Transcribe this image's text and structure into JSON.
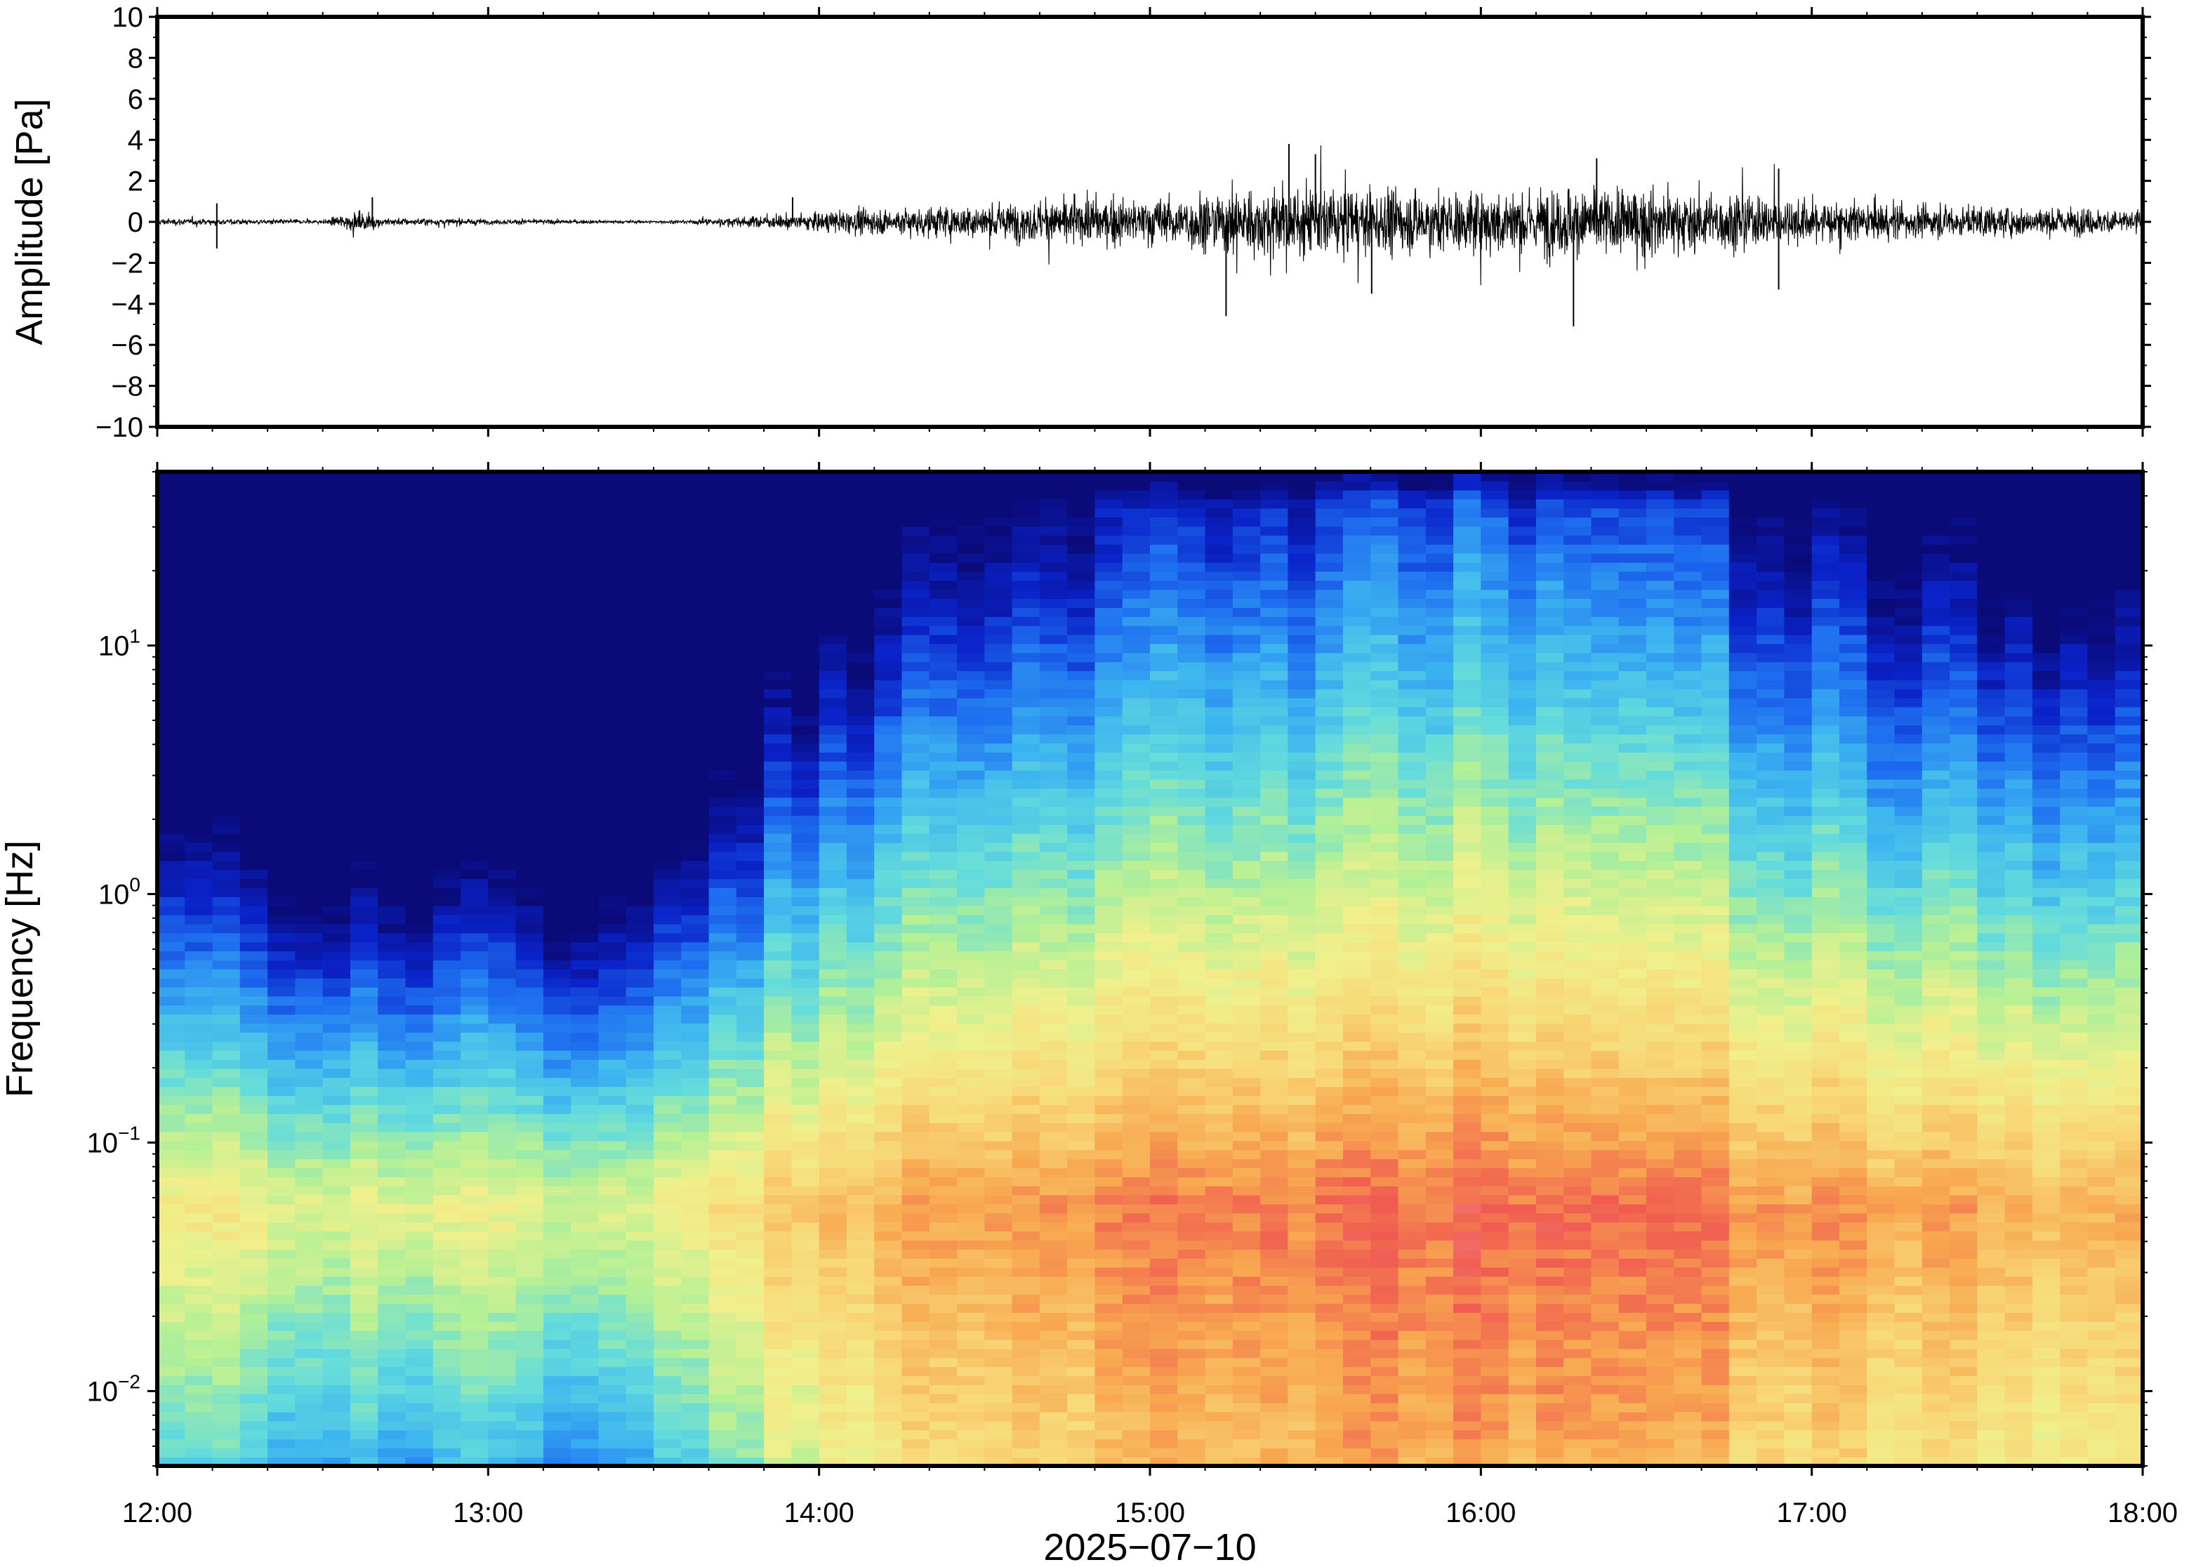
{
  "chart_data": [
    {
      "type": "line",
      "panel": "waveform",
      "ylabel": "Amplitude [Pa]",
      "ylim": [
        -10,
        10
      ],
      "yticks": [
        10,
        8,
        6,
        4,
        2,
        0,
        -2,
        -4,
        -6,
        -8,
        -10
      ],
      "ytick_labels": [
        "10",
        "8",
        "6",
        "4",
        "2",
        "0",
        "−2",
        "−4",
        "−6",
        "−8",
        "−10"
      ],
      "xlim": [
        "12:00",
        "18:00"
      ],
      "series_color": "#000000",
      "envelope": {
        "x_hours": [
          12.0,
          12.5,
          12.6,
          12.7,
          13.0,
          13.5,
          13.6,
          13.8,
          14.0,
          14.3,
          14.5,
          14.8,
          15.0,
          15.25,
          15.4,
          15.6,
          15.8,
          16.0,
          16.3,
          16.5,
          16.7,
          16.9,
          17.2,
          17.5,
          18.0
        ],
        "amplitude_pa": [
          0.25,
          0.15,
          0.7,
          0.3,
          0.2,
          0.1,
          0.15,
          0.4,
          0.7,
          1.1,
          1.3,
          1.6,
          1.7,
          2.4,
          2.6,
          2.3,
          2.2,
          2.3,
          2.6,
          2.4,
          2.1,
          1.8,
          1.3,
          1.1,
          0.9
        ]
      },
      "peaks": [
        {
          "x_hours": 12.18,
          "value": -1.3
        },
        {
          "x_hours": 12.18,
          "value": 0.9
        },
        {
          "x_hours": 12.65,
          "value": 1.2
        },
        {
          "x_hours": 13.92,
          "value": 1.2
        },
        {
          "x_hours": 15.23,
          "value": -4.6
        },
        {
          "x_hours": 15.42,
          "value": 3.8
        },
        {
          "x_hours": 15.5,
          "value": 3.3
        },
        {
          "x_hours": 15.67,
          "value": -3.5
        },
        {
          "x_hours": 16.28,
          "value": -5.1
        },
        {
          "x_hours": 16.35,
          "value": 3.1
        },
        {
          "x_hours": 16.9,
          "value": -3.3
        },
        {
          "x_hours": 16.9,
          "value": 2.6
        }
      ]
    },
    {
      "type": "heatmap",
      "panel": "spectrogram",
      "ylabel": "Frequency [Hz]",
      "xlabel": "2025−07−10",
      "yscale": "log",
      "ylim": [
        0.005,
        50
      ],
      "yticks": [
        0.01,
        0.1,
        1,
        10
      ],
      "ytick_labels": [
        {
          "base": "10",
          "exp": "−2"
        },
        {
          "base": "10",
          "exp": "−1"
        },
        {
          "base": "10",
          "exp": "0"
        },
        {
          "base": "10",
          "exp": "1"
        }
      ],
      "xlim": [
        "12:00",
        "18:00"
      ],
      "xticks": [
        "12:00",
        "13:00",
        "14:00",
        "15:00",
        "16:00",
        "17:00",
        "18:00"
      ],
      "colormap": [
        "#0a0a78",
        "#0a22c8",
        "#1e6ef0",
        "#3cb4f0",
        "#64dcdc",
        "#b4f096",
        "#f0f08c",
        "#f8d878",
        "#f8a850",
        "#f05a50",
        "#f8a0a8"
      ],
      "color_note_scale": "power (dB) increasing from dark blue to pink",
      "intensity_profile": {
        "x_hours": [
          12.0,
          12.5,
          13.0,
          13.3,
          13.6,
          13.9,
          14.2,
          14.6,
          15.0,
          15.4,
          15.8,
          16.2,
          16.6,
          17.0,
          17.4,
          17.8,
          18.0
        ],
        "activity": [
          0.35,
          0.2,
          0.22,
          0.12,
          0.3,
          0.55,
          0.68,
          0.75,
          0.82,
          0.86,
          0.9,
          0.92,
          0.86,
          0.76,
          0.7,
          0.64,
          0.62
        ]
      },
      "peak_band_hz": [
        0.03,
        0.12
      ]
    }
  ]
}
